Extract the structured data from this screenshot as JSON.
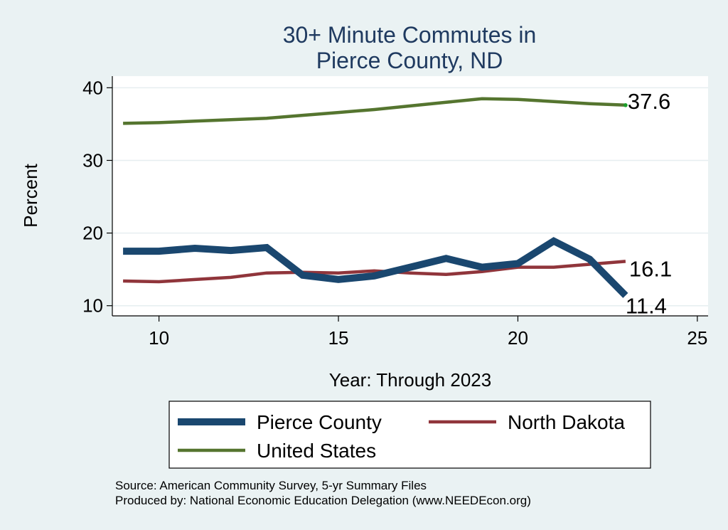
{
  "chart_data": {
    "type": "line",
    "title_lines": [
      "30+ Minute Commutes in",
      "Pierce County, ND"
    ],
    "xlabel": "Year: Through 2023",
    "ylabel": "Percent",
    "xlim": [
      8.7,
      25.3
    ],
    "ylim": [
      8.6,
      41.6
    ],
    "xticks": [
      10,
      15,
      20,
      25
    ],
    "yticks": [
      10,
      20,
      30,
      40
    ],
    "grid": true,
    "legend_position": "bottom",
    "x": [
      9,
      10,
      11,
      12,
      13,
      14,
      15,
      16,
      17,
      18,
      19,
      20,
      21,
      22,
      23
    ],
    "series": [
      {
        "name": "Pierce County",
        "color": "#1a476f",
        "values": [
          17.5,
          17.5,
          17.9,
          17.6,
          18.0,
          14.2,
          13.6,
          14.1,
          15.3,
          16.5,
          15.3,
          15.8,
          18.9,
          16.4,
          11.4
        ],
        "end_label": "11.4"
      },
      {
        "name": "North Dakota",
        "color": "#90353b",
        "values": [
          13.4,
          13.3,
          13.6,
          13.9,
          14.5,
          14.6,
          14.5,
          14.8,
          14.5,
          14.3,
          14.7,
          15.3,
          15.3,
          15.7,
          16.1
        ],
        "end_label": "16.1"
      },
      {
        "name": "United States",
        "color": "#55752f",
        "values": [
          35.1,
          35.2,
          35.4,
          35.6,
          35.8,
          36.2,
          36.6,
          37.0,
          37.5,
          38.0,
          38.5,
          38.4,
          38.1,
          37.8,
          37.6
        ],
        "end_label": "37.6"
      }
    ]
  },
  "notes": {
    "source": "Source: American Community Survey, 5-yr Summary Files",
    "produced_by": "Produced by: National Economic Education Delegation (www.NEEDEcon.org)"
  }
}
